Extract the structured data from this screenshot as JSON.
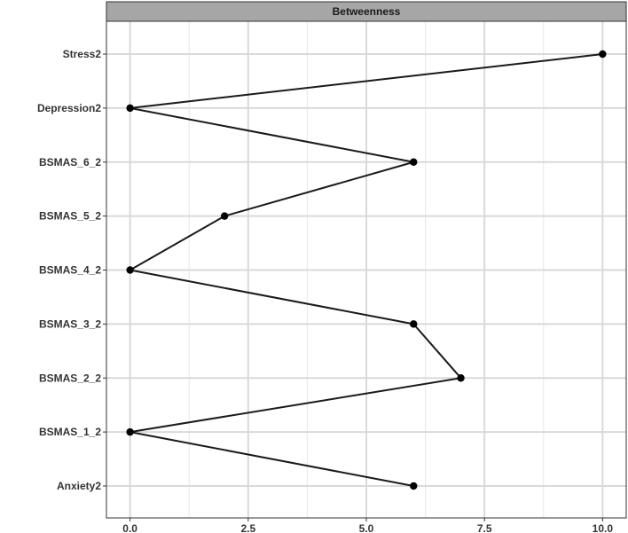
{
  "chart_data": {
    "type": "line",
    "title": "Betweenness",
    "orientation": "horizontal",
    "categories": [
      "Stress2",
      "Depression2",
      "BSMAS_6_2",
      "BSMAS_5_2",
      "BSMAS_4_2",
      "BSMAS_3_2",
      "BSMAS_2_2",
      "BSMAS_1_2",
      "Anxiety2"
    ],
    "values": [
      10,
      0,
      6,
      2,
      0,
      6,
      7,
      0,
      6
    ],
    "xlim": [
      -0.5,
      10.5
    ],
    "xticks": [
      0.0,
      2.5,
      5.0,
      7.5,
      10.0
    ],
    "xtick_labels": [
      "0.0",
      "2.5",
      "5.0",
      "7.5",
      "10.0"
    ],
    "xlabel": "",
    "ylabel": "",
    "grid": true,
    "legend": "none",
    "colors": {
      "line": "#1a1a1a",
      "point": "#000000",
      "grid_major": "#d9d9d9",
      "grid_minor": "#ebebeb",
      "strip_fill": "#a6a6a6",
      "panel_border": "#333333"
    }
  }
}
